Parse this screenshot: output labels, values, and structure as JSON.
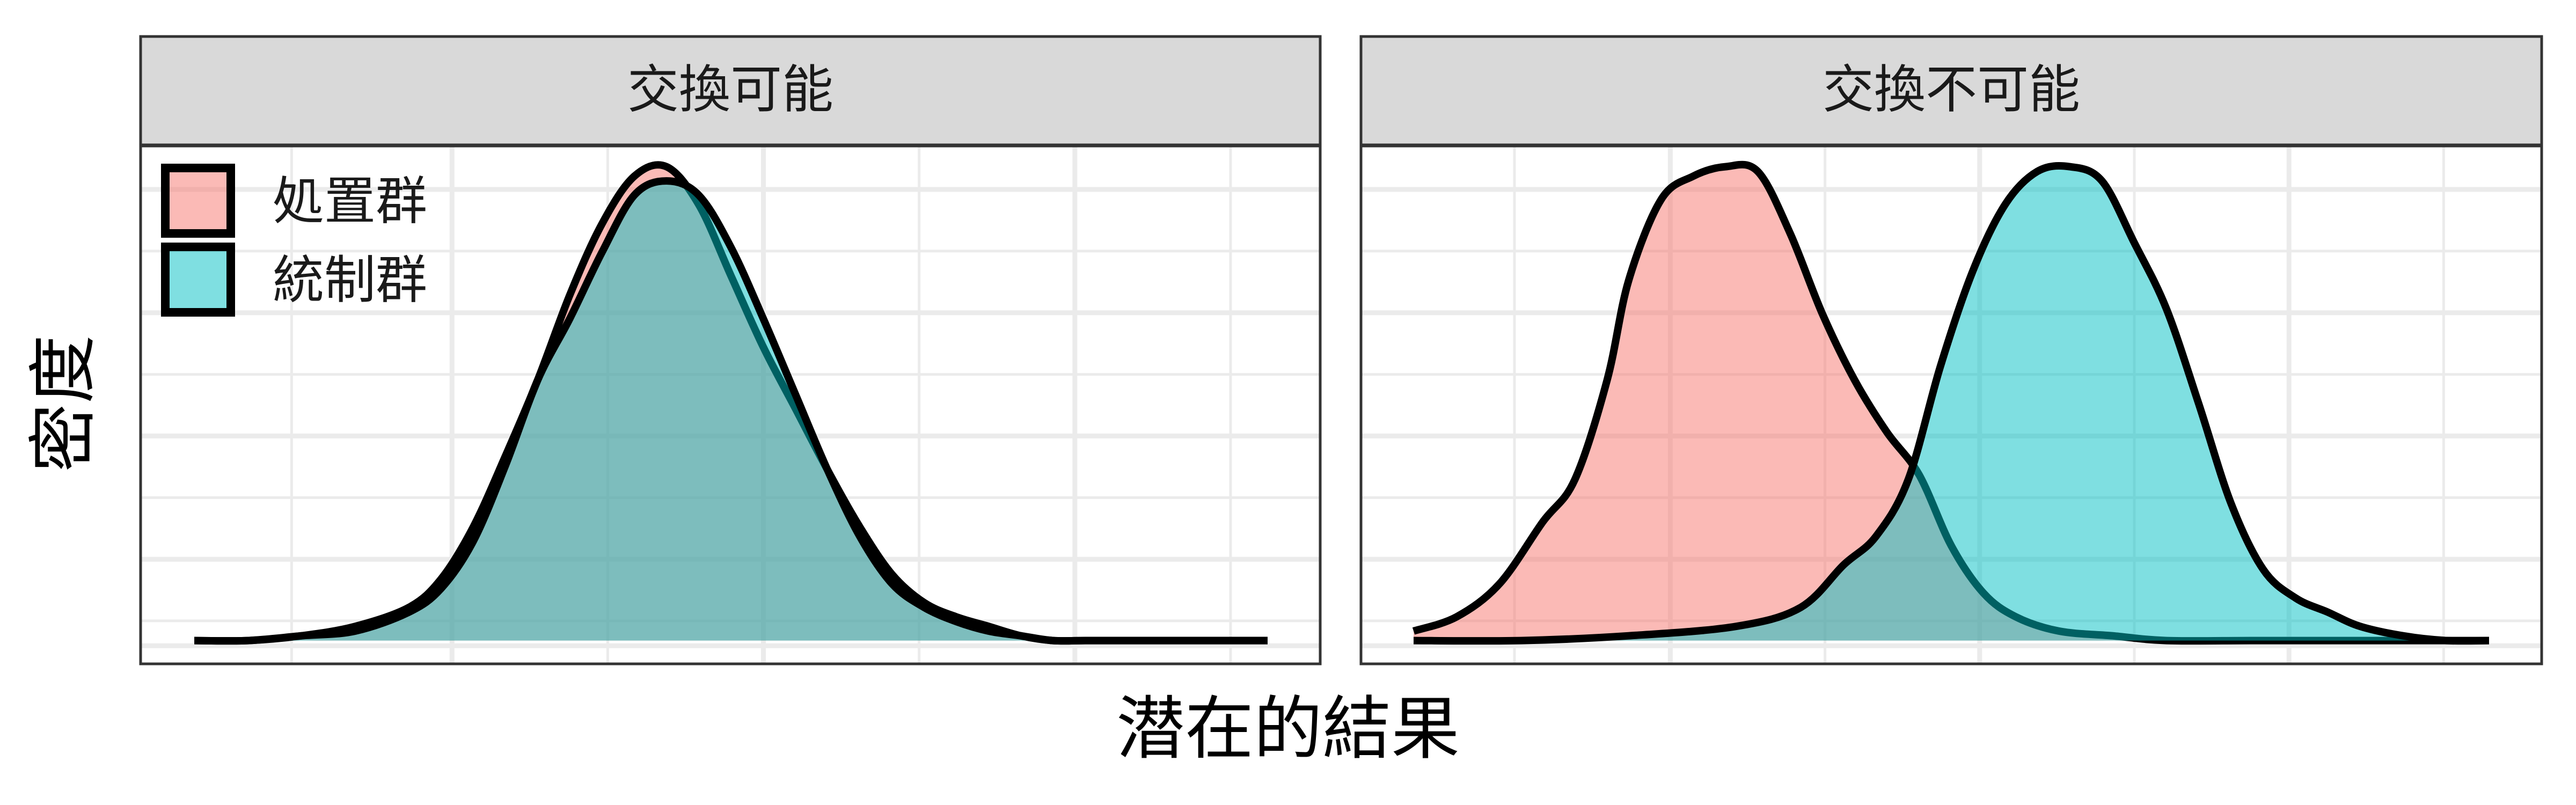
{
  "chart_data": {
    "type": "area",
    "subtype": "density",
    "xlabel": "潜在的結果",
    "ylabel": "密度",
    "x_ticks_shown": false,
    "y_ticks_shown": false,
    "grid": true,
    "legend_position": "top-left inside first panel",
    "series_names": [
      "処置群",
      "統制群"
    ],
    "colors": {
      "処置群": "#F8766D",
      "統制群": "#00BFC4"
    },
    "facets": [
      {
        "strip_label": "交換可能",
        "series": [
          {
            "name": "処置群",
            "x": [
              0.0,
              0.05,
              0.1,
              0.15,
              0.2,
              0.23,
              0.26,
              0.29,
              0.32,
              0.35,
              0.38,
              0.41,
              0.44,
              0.47,
              0.5,
              0.53,
              0.56,
              0.59,
              0.62,
              0.65,
              0.68,
              0.71,
              0.74,
              0.77,
              0.8,
              0.83,
              0.86,
              0.9,
              0.95,
              1.0
            ],
            "y": [
              0.0,
              0.0,
              0.01,
              0.03,
              0.07,
              0.13,
              0.24,
              0.39,
              0.55,
              0.73,
              0.88,
              0.98,
              1.0,
              0.92,
              0.77,
              0.62,
              0.49,
              0.36,
              0.24,
              0.14,
              0.08,
              0.05,
              0.03,
              0.01,
              0.0,
              0.0,
              0.0,
              0.0,
              0.0,
              0.0
            ]
          },
          {
            "name": "統制群",
            "x": [
              0.0,
              0.05,
              0.1,
              0.15,
              0.2,
              0.23,
              0.26,
              0.29,
              0.32,
              0.35,
              0.38,
              0.41,
              0.44,
              0.47,
              0.5,
              0.53,
              0.56,
              0.59,
              0.62,
              0.65,
              0.68,
              0.71,
              0.74,
              0.77,
              0.8,
              0.83,
              0.86,
              0.9,
              0.95,
              1.0
            ],
            "y": [
              0.0,
              0.0,
              0.01,
              0.02,
              0.06,
              0.11,
              0.21,
              0.37,
              0.55,
              0.68,
              0.82,
              0.94,
              0.97,
              0.94,
              0.83,
              0.68,
              0.52,
              0.36,
              0.22,
              0.12,
              0.07,
              0.04,
              0.02,
              0.01,
              0.0,
              0.0,
              0.0,
              0.0,
              0.0,
              0.0
            ]
          }
        ]
      },
      {
        "strip_label": "交換不可能",
        "series": [
          {
            "name": "処置群",
            "x": [
              0.0,
              0.04,
              0.08,
              0.12,
              0.15,
              0.18,
              0.2,
              0.23,
              0.26,
              0.29,
              0.32,
              0.35,
              0.38,
              0.41,
              0.44,
              0.47,
              0.5,
              0.53,
              0.56,
              0.6,
              0.65,
              0.7,
              0.78,
              0.86,
              0.93,
              1.0
            ],
            "y": [
              0.02,
              0.05,
              0.12,
              0.25,
              0.34,
              0.55,
              0.76,
              0.93,
              0.98,
              1.0,
              0.99,
              0.86,
              0.69,
              0.55,
              0.44,
              0.35,
              0.2,
              0.1,
              0.05,
              0.02,
              0.01,
              0.0,
              0.0,
              0.0,
              0.0,
              0.0
            ]
          },
          {
            "name": "統制群",
            "x": [
              0.0,
              0.1,
              0.2,
              0.3,
              0.36,
              0.4,
              0.43,
              0.46,
              0.49,
              0.52,
              0.55,
              0.58,
              0.61,
              0.64,
              0.67,
              0.7,
              0.73,
              0.76,
              0.79,
              0.82,
              0.85,
              0.88,
              0.92,
              0.96,
              1.0
            ],
            "y": [
              0.0,
              0.0,
              0.01,
              0.03,
              0.07,
              0.16,
              0.22,
              0.34,
              0.58,
              0.78,
              0.92,
              0.99,
              1.0,
              0.97,
              0.84,
              0.7,
              0.5,
              0.29,
              0.15,
              0.09,
              0.06,
              0.03,
              0.01,
              0.0,
              0.0
            ]
          }
        ]
      }
    ]
  }
}
